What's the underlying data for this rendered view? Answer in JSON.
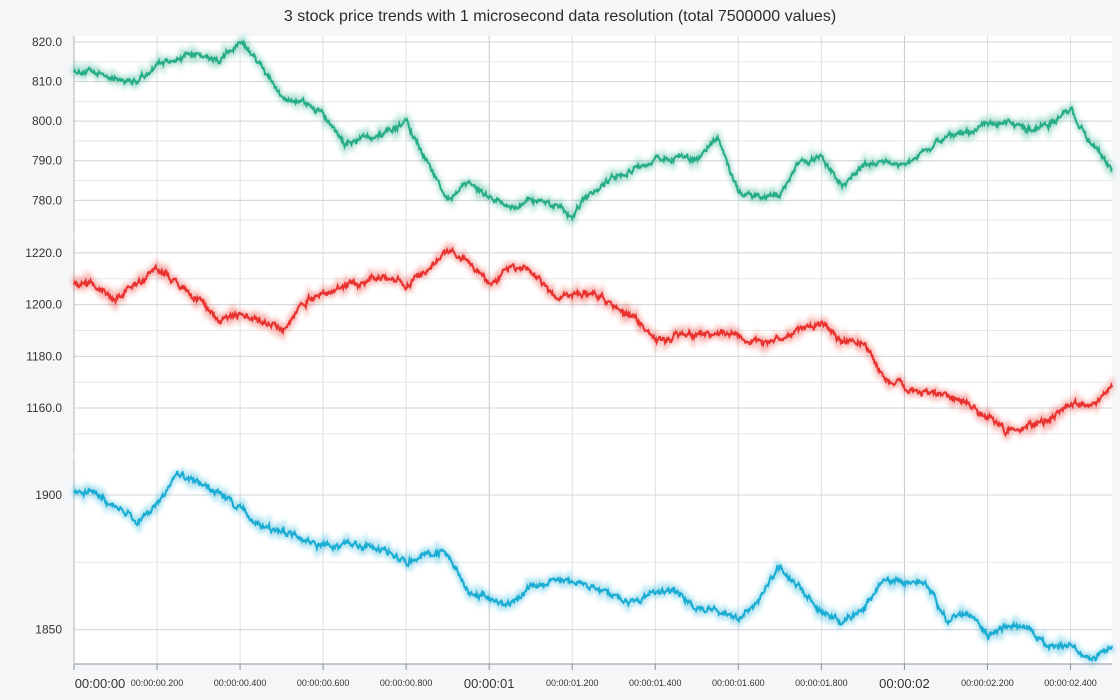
{
  "chart_data": {
    "type": "line",
    "title": "3 stock price trends with 1 microsecond data resolution (total 7500000 values)",
    "xlabel": "",
    "ylabel": "",
    "grid": true,
    "xlim": [
      0,
      2.5
    ],
    "x_ticks": [
      {
        "value": 0.0,
        "label": "00:00:00",
        "major": true
      },
      {
        "value": 0.2,
        "label": "00:00:00.200",
        "major": false
      },
      {
        "value": 0.4,
        "label": "00:00:00.400",
        "major": false
      },
      {
        "value": 0.6,
        "label": "00:00:00.600",
        "major": false
      },
      {
        "value": 0.8,
        "label": "00:00:00.800",
        "major": false
      },
      {
        "value": 1.0,
        "label": "00:00:01",
        "major": true
      },
      {
        "value": 1.2,
        "label": "00:00:01.200",
        "major": false
      },
      {
        "value": 1.4,
        "label": "00:00:01.400",
        "major": false
      },
      {
        "value": 1.6,
        "label": "00:00:01.600",
        "major": false
      },
      {
        "value": 1.8,
        "label": "00:00:01.800",
        "major": false
      },
      {
        "value": 2.0,
        "label": "00:00:02",
        "major": true
      },
      {
        "value": 2.2,
        "label": "00:00:02.200",
        "major": false
      },
      {
        "value": 2.4,
        "label": "00:00:02.400",
        "major": false
      }
    ],
    "panels": [
      {
        "color": "#26ad87",
        "ylim": [
          772,
          821.5
        ],
        "y_ticks": [
          {
            "value": 820,
            "label": "820.0"
          },
          {
            "value": 810,
            "label": "810.0"
          },
          {
            "value": 800,
            "label": "800.0"
          },
          {
            "value": 790,
            "label": "790.0"
          },
          {
            "value": 780,
            "label": "780.0"
          }
        ],
        "x": [
          0,
          0.05,
          0.1,
          0.15,
          0.2,
          0.25,
          0.3,
          0.35,
          0.4,
          0.45,
          0.5,
          0.55,
          0.6,
          0.65,
          0.7,
          0.75,
          0.8,
          0.85,
          0.9,
          0.95,
          1.0,
          1.05,
          1.1,
          1.15,
          1.2,
          1.25,
          1.3,
          1.35,
          1.4,
          1.45,
          1.5,
          1.55,
          1.6,
          1.65,
          1.7,
          1.75,
          1.8,
          1.85,
          1.9,
          1.95,
          2.0,
          2.05,
          2.1,
          2.15,
          2.2,
          2.25,
          2.3,
          2.35,
          2.4,
          2.45,
          2.5
        ],
        "values": [
          813,
          812,
          811,
          810,
          814,
          816,
          817,
          815,
          820,
          814,
          806,
          805,
          802,
          794,
          796,
          797,
          800,
          790,
          780,
          784,
          781,
          778,
          780,
          779,
          776,
          782,
          786,
          788,
          790,
          791,
          790,
          796,
          782,
          781,
          781,
          790,
          791,
          783,
          789,
          790,
          789,
          792,
          796,
          797,
          799,
          800,
          798,
          799,
          803,
          794,
          788
        ]
      },
      {
        "color": "#e8322f",
        "ylim": [
          1143,
          1225
        ],
        "y_ticks": [
          {
            "value": 1220,
            "label": "1220.0"
          },
          {
            "value": 1200,
            "label": "1200.0"
          },
          {
            "value": 1180,
            "label": "1180.0"
          },
          {
            "value": 1160,
            "label": "1160.0"
          }
        ],
        "x": [
          0,
          0.05,
          0.1,
          0.15,
          0.2,
          0.25,
          0.3,
          0.35,
          0.4,
          0.45,
          0.5,
          0.55,
          0.6,
          0.65,
          0.7,
          0.75,
          0.8,
          0.85,
          0.9,
          0.95,
          1.0,
          1.05,
          1.1,
          1.15,
          1.2,
          1.25,
          1.3,
          1.35,
          1.4,
          1.45,
          1.5,
          1.55,
          1.6,
          1.65,
          1.7,
          1.75,
          1.8,
          1.85,
          1.9,
          1.95,
          2.0,
          2.05,
          2.1,
          2.15,
          2.2,
          2.25,
          2.3,
          2.35,
          2.4,
          2.45,
          2.5
        ],
        "values": [
          1209,
          1208,
          1202,
          1208,
          1214,
          1208,
          1202,
          1194,
          1196,
          1194,
          1190,
          1201,
          1204,
          1207,
          1209,
          1211,
          1208,
          1213,
          1221,
          1217,
          1208,
          1214,
          1214,
          1204,
          1203,
          1205,
          1200,
          1195,
          1185,
          1188,
          1188,
          1189,
          1188,
          1186,
          1186,
          1191,
          1192,
          1186,
          1185,
          1172,
          1168,
          1166,
          1165,
          1162,
          1157,
          1151,
          1153,
          1156,
          1163,
          1160,
          1168
        ]
      },
      {
        "color": "#1aadd4",
        "ylim": [
          1838,
          1913
        ],
        "y_ticks": [
          {
            "value": 1900,
            "label": "1900"
          },
          {
            "value": 1850,
            "label": "1850"
          }
        ],
        "x": [
          0,
          0.05,
          0.1,
          0.15,
          0.2,
          0.25,
          0.3,
          0.35,
          0.4,
          0.45,
          0.5,
          0.55,
          0.6,
          0.65,
          0.7,
          0.75,
          0.8,
          0.85,
          0.9,
          0.95,
          1.0,
          1.05,
          1.1,
          1.15,
          1.2,
          1.25,
          1.3,
          1.35,
          1.4,
          1.45,
          1.5,
          1.55,
          1.6,
          1.65,
          1.7,
          1.75,
          1.8,
          1.85,
          1.9,
          1.95,
          2.0,
          2.05,
          2.1,
          2.15,
          2.2,
          2.25,
          2.3,
          2.35,
          2.4,
          2.45,
          2.5
        ],
        "values": [
          1902,
          1901,
          1896,
          1890,
          1896,
          1908,
          1904,
          1901,
          1895,
          1888,
          1887,
          1883,
          1881,
          1882,
          1881,
          1879,
          1875,
          1879,
          1879,
          1864,
          1862,
          1859,
          1866,
          1868,
          1868,
          1866,
          1863,
          1860,
          1864,
          1864,
          1858,
          1858,
          1854,
          1862,
          1874,
          1865,
          1857,
          1852,
          1857,
          1869,
          1867,
          1868,
          1853,
          1857,
          1848,
          1851,
          1851,
          1843,
          1844,
          1839,
          1844
        ]
      }
    ]
  }
}
